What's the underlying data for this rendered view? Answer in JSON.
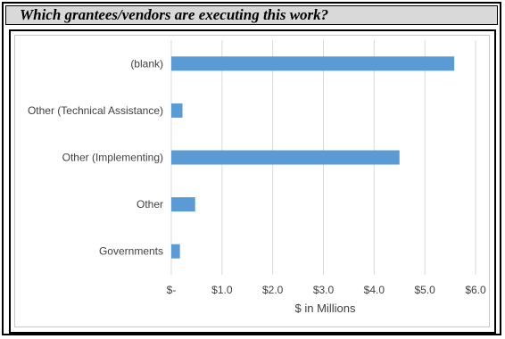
{
  "header": {
    "question": "Which grantees/vendors are executing this work?"
  },
  "chart_data": {
    "type": "bar",
    "orientation": "horizontal",
    "categories": [
      "(blank)",
      "Other (Technical Assistance)",
      "Other (Implementing)",
      "Other",
      "Governments"
    ],
    "values": [
      5.58,
      0.22,
      4.5,
      0.47,
      0.17
    ],
    "xlabel": "$ in Millions",
    "ylabel": "",
    "xlim": [
      0,
      6
    ],
    "x_ticks": [
      0,
      1,
      2,
      3,
      4,
      5,
      6
    ],
    "x_tick_labels": [
      "$-",
      "$1.0",
      "$2.0",
      "$3.0",
      "$4.0",
      "$5.0",
      "$6.0"
    ],
    "grid": "vertical",
    "bar_color": "#5b9bd5",
    "grid_color": "#d9d9d9"
  }
}
